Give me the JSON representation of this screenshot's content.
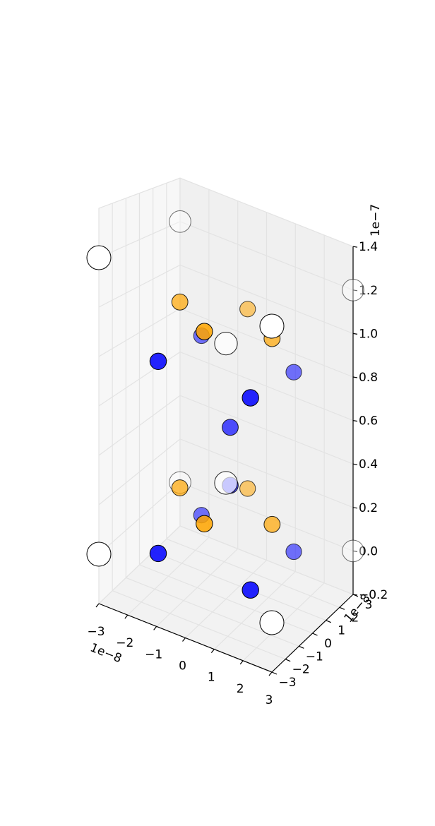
{
  "chart_data": {
    "type": "scatter3d",
    "title": "",
    "x_offset_label": "1e−8",
    "y_offset_label": "1e−8",
    "z_offset_label": "1e−7",
    "x_ticks": [
      "−3",
      "−2",
      "−1",
      "0",
      "1",
      "2",
      "3"
    ],
    "y_ticks": [
      "−3",
      "−2",
      "−1",
      "0",
      "1",
      "2",
      "3"
    ],
    "z_ticks": [
      "−0.2",
      "0.0",
      "0.2",
      "0.4",
      "0.6",
      "0.8",
      "1.0",
      "1.2",
      "1.4"
    ],
    "xlim": [
      -3.0,
      3.0
    ],
    "ylim": [
      -3.0,
      3.0
    ],
    "zlim": [
      -0.2,
      1.4
    ],
    "grid": true,
    "series": [
      {
        "color": "#0000ff",
        "points": [
          [
            -1.6,
            1.6,
            0.0
          ],
          [
            1.6,
            1.6,
            0.0
          ],
          [
            -1.6,
            -1.6,
            0.0
          ],
          [
            1.6,
            -1.6,
            0.0
          ],
          [
            -1.6,
            1.6,
            0.8
          ],
          [
            1.6,
            1.6,
            0.8
          ],
          [
            -1.6,
            -1.6,
            0.8
          ],
          [
            1.6,
            -1.6,
            0.8
          ],
          [
            0.1,
            0.1,
            0.29
          ],
          [
            0.1,
            0.1,
            0.54
          ]
        ]
      },
      {
        "color": "#ffa500",
        "points": [
          [
            -1.6,
            0.0,
            0.2
          ],
          [
            0.0,
            1.6,
            0.2
          ],
          [
            0.0,
            -1.6,
            0.2
          ],
          [
            1.6,
            0.0,
            0.2
          ],
          [
            -1.6,
            0.0,
            1.0
          ],
          [
            0.0,
            1.6,
            1.0
          ],
          [
            0.0,
            -1.6,
            1.0
          ],
          [
            1.6,
            0.0,
            1.0
          ]
        ]
      },
      {
        "color": "#ffffff",
        "points": [
          [
            -3.0,
            3.0,
            0.0
          ],
          [
            3.0,
            3.0,
            0.0
          ],
          [
            -3.0,
            -3.0,
            0.0
          ],
          [
            3.0,
            -3.0,
            0.0
          ],
          [
            -3.0,
            3.0,
            1.2
          ],
          [
            3.0,
            3.0,
            1.2
          ],
          [
            -3.0,
            -3.0,
            1.2
          ],
          [
            3.0,
            -3.0,
            1.2
          ],
          [
            0.0,
            0.0,
            0.3
          ],
          [
            0.0,
            0.0,
            0.9
          ]
        ]
      }
    ]
  }
}
